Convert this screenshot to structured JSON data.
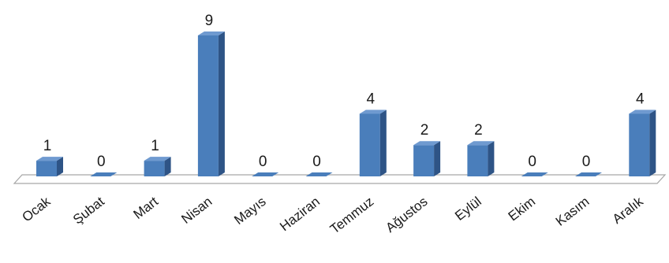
{
  "chart_data": {
    "type": "bar",
    "style": "3d-column",
    "categories": [
      "Ocak",
      "Şubat",
      "Mart",
      "Nisan",
      "Mayıs",
      "Haziran",
      "Temmuz",
      "Ağustos",
      "Eylül",
      "Ekim",
      "Kasım",
      "Aralık"
    ],
    "values": [
      1,
      0,
      1,
      9,
      0,
      0,
      4,
      2,
      2,
      0,
      0,
      4
    ],
    "data_labels": [
      "1",
      "0",
      "1",
      "9",
      "0",
      "0",
      "4",
      "2",
      "2",
      "0",
      "0",
      "4"
    ],
    "title": "",
    "xlabel": "",
    "ylabel": "",
    "ylim": [
      0,
      9
    ],
    "grid": false,
    "legend": "none",
    "colors": {
      "bar_front": "#4a7ebb",
      "bar_side": "#2e5486",
      "bar_top": "#6f9ad0",
      "floor_edge": "#a6a6a6",
      "label_text": "#1a1a1a"
    }
  }
}
